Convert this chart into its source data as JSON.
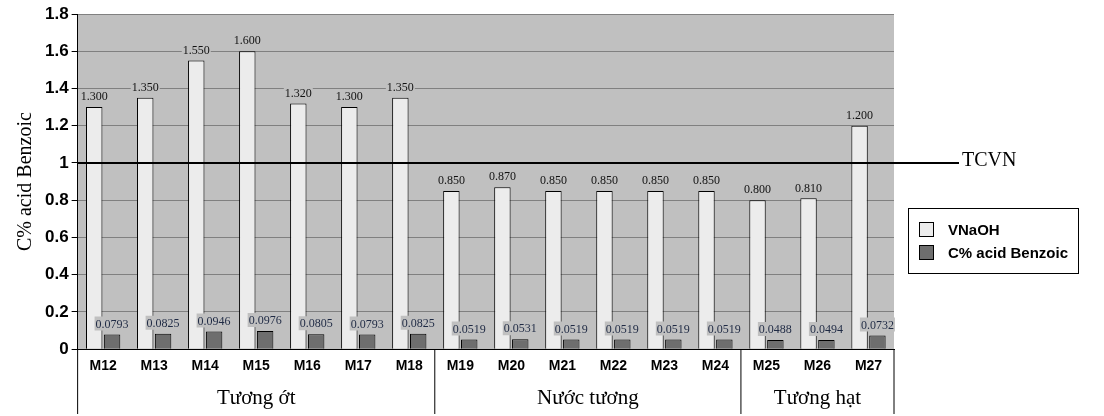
{
  "chart_data": {
    "type": "bar",
    "ylabel": "C% acid Benzoic",
    "categories": [
      "M12",
      "M13",
      "M14",
      "M15",
      "M16",
      "M17",
      "M18",
      "M19",
      "M20",
      "M21",
      "M22",
      "M23",
      "M24",
      "M25",
      "M26",
      "M27"
    ],
    "series": [
      {
        "name": "VNaOH",
        "color": "#ececec",
        "values": [
          1.3,
          1.35,
          1.55,
          1.6,
          1.32,
          1.3,
          1.35,
          0.85,
          0.87,
          0.85,
          0.85,
          0.85,
          0.85,
          0.8,
          0.81,
          1.2
        ],
        "value_labels": [
          "1.300",
          "1.350",
          "1.550",
          "1.600",
          "1.320",
          "1.300",
          "1.350",
          "0.850",
          "0.870",
          "0.850",
          "0.850",
          "0.850",
          "0.850",
          "0.800",
          "0.810",
          "1.200"
        ]
      },
      {
        "name": "C% acid Benzoic",
        "color": "#6e6e6e",
        "values": [
          0.0793,
          0.0825,
          0.0946,
          0.0976,
          0.0805,
          0.0793,
          0.0825,
          0.0519,
          0.0531,
          0.0519,
          0.0519,
          0.0519,
          0.0519,
          0.0488,
          0.0494,
          0.0732
        ],
        "value_labels": [
          "0.0793",
          "0.0825",
          "0.0946",
          "0.0976",
          "0.0805",
          "0.0793",
          "0.0825",
          "0.0519",
          "0.0531",
          "0.0519",
          "0.0519",
          "0.0519",
          "0.0519",
          "0.0488",
          "0.0494",
          "0.0732"
        ]
      }
    ],
    "ylim": [
      0,
      1.8
    ],
    "yticks": [
      0,
      0.2,
      0.4,
      0.6,
      0.8,
      1,
      1.2,
      1.4,
      1.6,
      1.8
    ],
    "grid": "y",
    "legend": "right",
    "ref_lines": [
      {
        "axis": "y",
        "value": 1,
        "label": "TCVN",
        "color": "#000000"
      }
    ],
    "annotations": [
      "Tương ớt",
      "Nước tương",
      "Tương hạt"
    ]
  }
}
